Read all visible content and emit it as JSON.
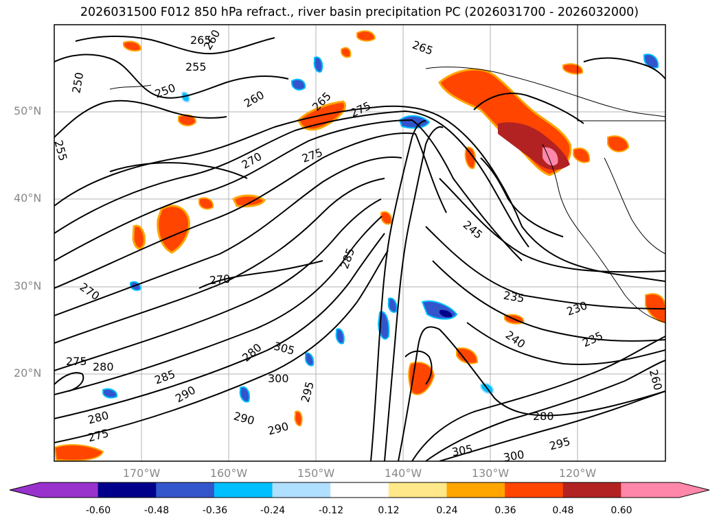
{
  "title": "2026031500 F012 850 hPa refract., river basin precipitation PC (2026031700 - 2026032000)",
  "map": {
    "lon_range": [
      "180°",
      "110°W"
    ],
    "lat_range": [
      "10°N",
      "60°N"
    ],
    "lat_ticks": [
      "50°N",
      "40°N",
      "30°N",
      "20°N"
    ],
    "lon_ticks": [
      "170°W",
      "160°W",
      "150°W",
      "140°W",
      "130°W",
      "120°W"
    ],
    "contour_labels": [
      "265",
      "260",
      "255",
      "250",
      "250",
      "255",
      "260",
      "265",
      "275",
      "270",
      "275",
      "265",
      "280",
      "285",
      "290",
      "305",
      "300",
      "295",
      "290",
      "285",
      "280",
      "275",
      "270",
      "235",
      "230",
      "235",
      "240",
      "245",
      "260",
      "280",
      "305",
      "300",
      "295",
      "290",
      "280",
      "275",
      "270"
    ],
    "contour_color": "#000000",
    "grid_color": "#b0b0b0"
  },
  "colorbar": {
    "labels": [
      "-0.60",
      "-0.48",
      "-0.36",
      "-0.24",
      "-0.12",
      "0.12",
      "0.24",
      "0.36",
      "0.48",
      "0.60"
    ],
    "colors": [
      "#9932cc",
      "#00008b",
      "#3355cc",
      "#00bfff",
      "#b0e0ff",
      "#ffffff",
      "#ffe88a",
      "#ffa500",
      "#ff4500",
      "#b22222",
      "#ff88aa"
    ],
    "extend": "both"
  }
}
